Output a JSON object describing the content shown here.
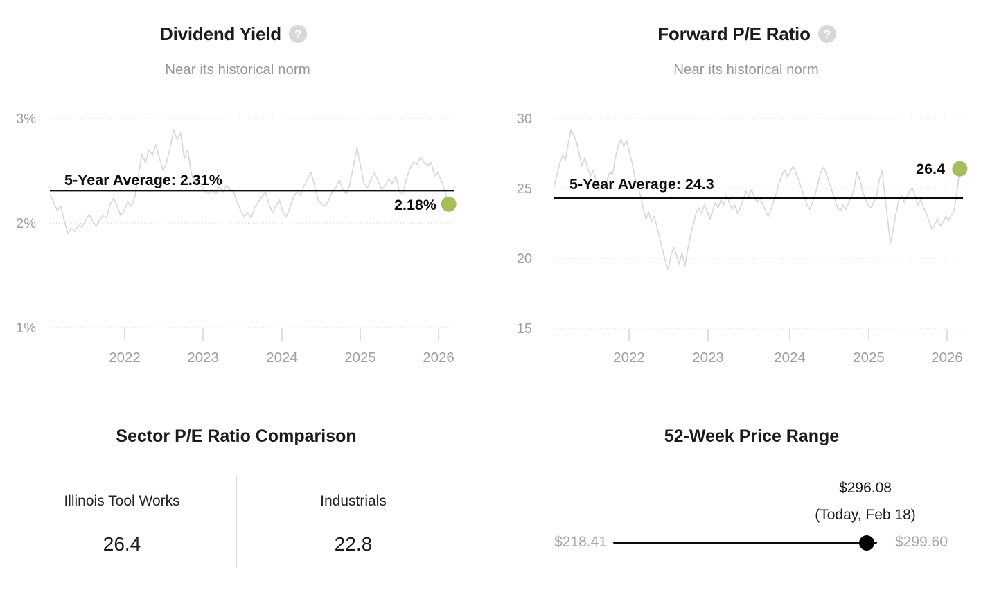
{
  "help_glyph": "?",
  "colors": {
    "series_line": "#d7d7d7",
    "gridline": "#d9d9d9",
    "tick_mark": "#d2d2d2",
    "axis_label": "#9f9f9f",
    "average_line": "#0c0c0c",
    "current_dot_green": "#a5bd5b",
    "dark_text": "#1b1b1b",
    "muted_text": "#979797",
    "range_label_gray": "#a6a6a6",
    "range_dot_black": "#000000",
    "help_icon_bg": "#d8d8d8"
  },
  "chart_data": [
    {
      "type": "line",
      "title": "Dividend Yield",
      "subtitle": "Near its historical norm",
      "ylabel": "",
      "xlabel": "",
      "ylim": [
        1,
        3
      ],
      "grid": "dotted-horizontal",
      "y_ticks": [
        {
          "label": "3%",
          "value": 3
        },
        {
          "label": "2%",
          "value": 2
        },
        {
          "label": "1%",
          "value": 1
        }
      ],
      "x_ticks": [
        {
          "label": "2022",
          "value": 2022
        },
        {
          "label": "2023",
          "value": 2023
        },
        {
          "label": "2024",
          "value": 2024
        },
        {
          "label": "2025",
          "value": 2025
        },
        {
          "label": "2026",
          "value": 2026
        }
      ],
      "average": {
        "label": "5-Year Average: 2.31%",
        "value": 2.31
      },
      "current": {
        "label": "2.18%",
        "value": 2.18
      },
      "series": [
        {
          "name": "Dividend Yield (%)",
          "start_year": 2021.05,
          "end_year": 2026.13,
          "values": [
            2.27,
            2.2,
            2.12,
            2.16,
            2.02,
            1.9,
            1.95,
            1.92,
            1.98,
            1.96,
            2.02,
            2.08,
            2.03,
            1.97,
            2.03,
            2.07,
            2.05,
            2.18,
            2.24,
            2.16,
            2.07,
            2.12,
            2.2,
            2.16,
            2.25,
            2.45,
            2.66,
            2.58,
            2.7,
            2.65,
            2.75,
            2.62,
            2.5,
            2.58,
            2.72,
            2.89,
            2.8,
            2.86,
            2.62,
            2.7,
            2.48,
            2.38,
            2.42,
            2.35,
            2.3,
            2.28,
            2.32,
            2.28,
            2.35,
            2.3,
            2.36,
            2.32,
            2.3,
            2.2,
            2.12,
            2.06,
            2.1,
            2.05,
            2.15,
            2.2,
            2.25,
            2.3,
            2.18,
            2.1,
            2.16,
            2.22,
            2.1,
            2.06,
            2.15,
            2.25,
            2.3,
            2.26,
            2.36,
            2.42,
            2.48,
            2.35,
            2.22,
            2.18,
            2.16,
            2.22,
            2.3,
            2.34,
            2.41,
            2.32,
            2.28,
            2.38,
            2.55,
            2.72,
            2.55,
            2.38,
            2.34,
            2.42,
            2.48,
            2.4,
            2.32,
            2.36,
            2.42,
            2.38,
            2.45,
            2.3,
            2.28,
            2.42,
            2.52,
            2.58,
            2.56,
            2.63,
            2.58,
            2.55,
            2.58,
            2.45,
            2.48,
            2.4,
            2.3,
            2.18
          ]
        }
      ]
    },
    {
      "type": "line",
      "title": "Forward P/E Ratio",
      "subtitle": "Near its historical norm",
      "ylabel": "",
      "xlabel": "",
      "ylim": [
        15,
        30
      ],
      "grid": "dotted-horizontal",
      "y_ticks": [
        {
          "label": "30",
          "value": 30
        },
        {
          "label": "25",
          "value": 25
        },
        {
          "label": "20",
          "value": 20
        },
        {
          "label": "15",
          "value": 15
        }
      ],
      "x_ticks": [
        {
          "label": "2022",
          "value": 2022
        },
        {
          "label": "2023",
          "value": 2023
        },
        {
          "label": "2024",
          "value": 2024
        },
        {
          "label": "2025",
          "value": 2025
        },
        {
          "label": "2026",
          "value": 2026
        }
      ],
      "average": {
        "label": "5-Year Average: 24.3",
        "value": 24.3
      },
      "current": {
        "label": "26.4",
        "value": 26.4
      },
      "series": [
        {
          "name": "Forward P/E Ratio",
          "start_year": 2021.06,
          "end_year": 2026.16,
          "values": [
            25.2,
            26,
            26.8,
            27.4,
            27,
            28.2,
            29.2,
            28.8,
            28.3,
            27.4,
            26.6,
            27.2,
            26.4,
            25.9,
            26.3,
            25.6,
            24.8,
            25.3,
            25,
            25.6,
            26.2,
            26,
            27.2,
            28,
            28.5,
            28,
            28.4,
            27.6,
            26.8,
            25.8,
            25.2,
            24.5,
            23.6,
            22.8,
            23.3,
            22.6,
            23,
            22.2,
            21.4,
            20.6,
            19.8,
            19.2,
            20.2,
            20.8,
            20.2,
            19.6,
            20.4,
            19.4,
            20.6,
            21.6,
            22.4,
            23.2,
            23.6,
            23.2,
            23.8,
            23.4,
            22.8,
            23.4,
            24,
            23.6,
            24.2,
            23.8,
            24.5,
            24,
            23.5,
            23.8,
            23.2,
            23.6,
            24.2,
            24.8,
            24.4,
            24.9,
            24.4,
            24,
            24.3,
            23.9,
            23.4,
            23,
            23.5,
            24.1,
            24.7,
            25.4,
            26,
            26.3,
            25.8,
            26.2,
            26.6,
            26.1,
            25.6,
            25,
            24.4,
            23.8,
            23.5,
            24,
            24.6,
            25.4,
            26.2,
            26.5,
            26,
            25.4,
            24.8,
            24.2,
            23.6,
            23.4,
            23.8,
            23.5,
            24,
            24.4,
            25,
            26.2,
            25.6,
            24.8,
            24.2,
            23.8,
            23.6,
            24,
            24.4,
            25.6,
            26.3,
            24.6,
            22.8,
            21.1,
            22,
            23.2,
            24.1,
            24.5,
            24,
            24.4,
            24.8,
            25,
            24.4,
            23.8,
            24.2,
            23.6,
            23.2,
            22.6,
            22.1,
            22.4,
            22.8,
            22.3,
            22.6,
            23,
            22.7,
            23.1,
            23.4,
            24.8,
            26.4
          ]
        }
      ]
    }
  ],
  "sector_comparison": {
    "title": "Sector P/E Ratio Comparison",
    "columns": [
      {
        "name": "Illinois Tool Works",
        "value": "26.4"
      },
      {
        "name": "Industrials",
        "value": "22.8"
      }
    ]
  },
  "price_range": {
    "title": "52-Week Price Range",
    "low_label": "$218.41",
    "high_label": "$299.60",
    "current_price_label": "$296.08",
    "current_date_label": "(Today, Feb 18)",
    "low": 218.41,
    "high": 299.6,
    "current": 296.08
  }
}
